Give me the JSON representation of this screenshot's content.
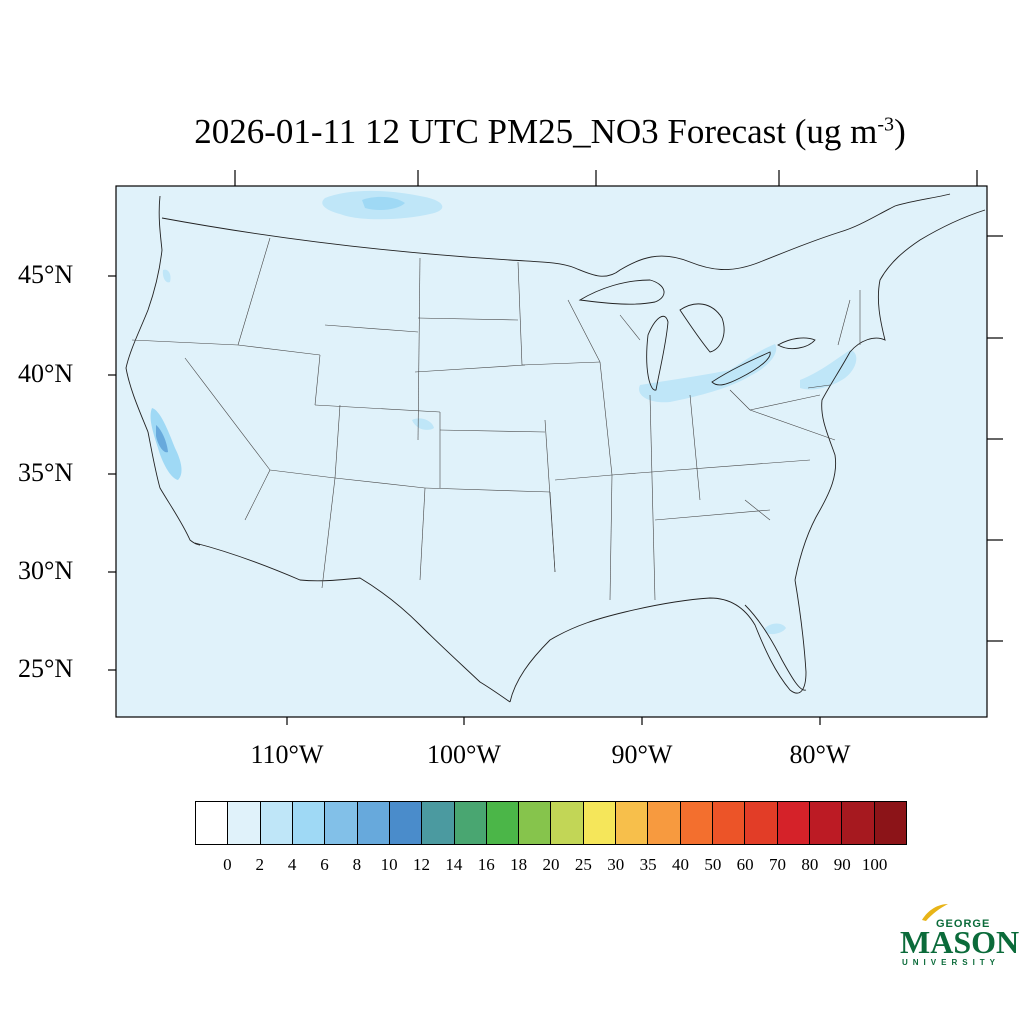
{
  "title": {
    "text": "2026-01-11 12 UTC PM25_NO3 Forecast (ug m",
    "superscript": "-3",
    "suffix": ")"
  },
  "map": {
    "projection": "lambert-conformal",
    "region": "CONUS",
    "background_color": "#e0f2fa",
    "lat_labels": [
      "45°N",
      "40°N",
      "35°N",
      "30°N",
      "25°N"
    ],
    "lon_labels": [
      "110°W",
      "100°W",
      "90°W",
      "80°W"
    ],
    "hotspots": [
      {
        "area": "California Central Valley",
        "level": "4-12"
      },
      {
        "area": "Ohio River Valley / Great Lakes",
        "level": "2-6"
      },
      {
        "area": "Northeast corridor (NJ/NY)",
        "level": "2-6"
      },
      {
        "area": "Southern Canada north of Montana",
        "level": "2-6"
      }
    ]
  },
  "colorbar": {
    "labels": [
      "0",
      "2",
      "4",
      "6",
      "8",
      "10",
      "12",
      "14",
      "16",
      "18",
      "20",
      "25",
      "30",
      "35",
      "40",
      "50",
      "60",
      "70",
      "80",
      "90",
      "100"
    ],
    "colors": [
      "#ffffff",
      "#e0f2fa",
      "#bfe6f8",
      "#9fd9f5",
      "#82c0e8",
      "#67a9dc",
      "#4a8ccb",
      "#4b9aa0",
      "#49a671",
      "#4bb648",
      "#86c44c",
      "#c2d656",
      "#f5e65a",
      "#f7bf4b",
      "#f79a3f",
      "#f36f2e",
      "#ec5428",
      "#e23d27",
      "#d52229",
      "#bc1b24",
      "#a6191f",
      "#8c1418"
    ]
  },
  "logo": {
    "top": "GEORGE",
    "main": "MASON",
    "bottom": "UNIVERSITY",
    "color": "#0b6b3a",
    "accent_color": "#e8b417"
  }
}
